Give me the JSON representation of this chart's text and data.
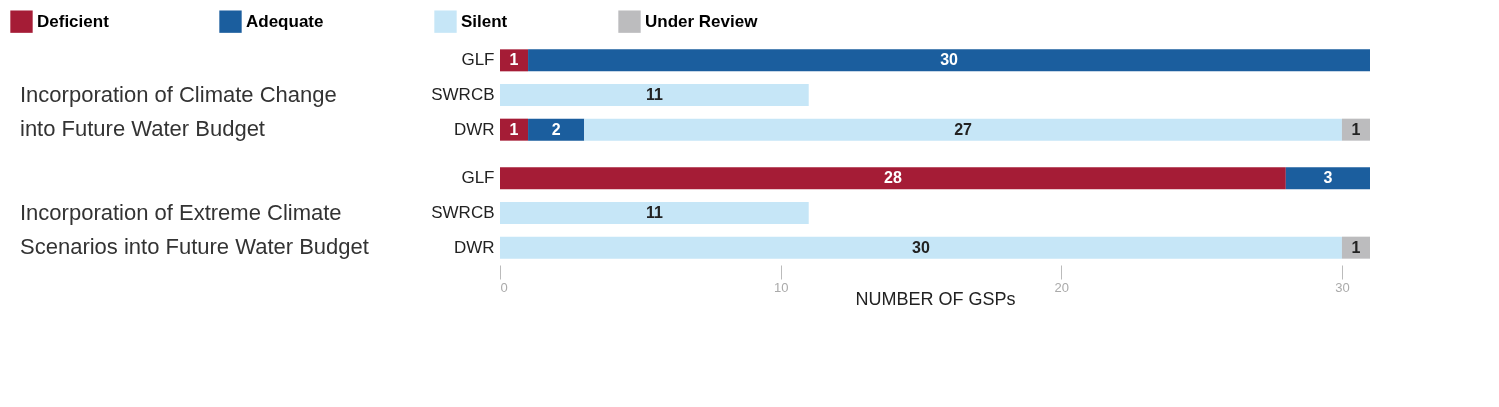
{
  "chart_data": [
    {
      "type": "bar",
      "orientation": "horizontal",
      "stacked": true,
      "title": "Incorporation of Climate Change into Future Water Budget",
      "categories": [
        "GLF",
        "SWRCB",
        "DWR"
      ],
      "series": [
        {
          "name": "Deficient",
          "color": "#a51c36",
          "values": [
            1,
            null,
            1
          ]
        },
        {
          "name": "Adequate",
          "color": "#1b5e9e",
          "values": [
            30,
            null,
            2
          ]
        },
        {
          "name": "Silent",
          "color": "#c6e6f7",
          "values": [
            null,
            11,
            27
          ]
        },
        {
          "name": "Under Review",
          "color": "#bcbcbe",
          "values": [
            null,
            null,
            1
          ]
        }
      ],
      "xlim": [
        0,
        31
      ],
      "xticks": [
        0,
        10,
        20,
        30
      ],
      "tick_labels": "y",
      "data_labels": true,
      "legend": "top",
      "grid": false
    },
    {
      "type": "bar",
      "orientation": "horizontal",
      "stacked": true,
      "title": "Incorporation of Extreme Climate Scenarios into Future Water Budget",
      "categories": [
        "GLF",
        "SWRCB",
        "DWR"
      ],
      "series": [
        {
          "name": "Deficient",
          "color": "#a51c36",
          "values": [
            28,
            null,
            null
          ]
        },
        {
          "name": "Adequate",
          "color": "#1b5e9e",
          "values": [
            3,
            null,
            null
          ]
        },
        {
          "name": "Silent",
          "color": "#c6e6f7",
          "values": [
            null,
            11,
            30
          ]
        },
        {
          "name": "Under Review",
          "color": "#bcbcbe",
          "values": [
            null,
            null,
            1
          ]
        }
      ],
      "xlim": [
        0,
        31
      ],
      "xticks": [
        0,
        10,
        20,
        30
      ],
      "xlabel": "NUMBER OF GSPs",
      "data_labels": true,
      "legend": "top",
      "grid": false
    }
  ]
}
